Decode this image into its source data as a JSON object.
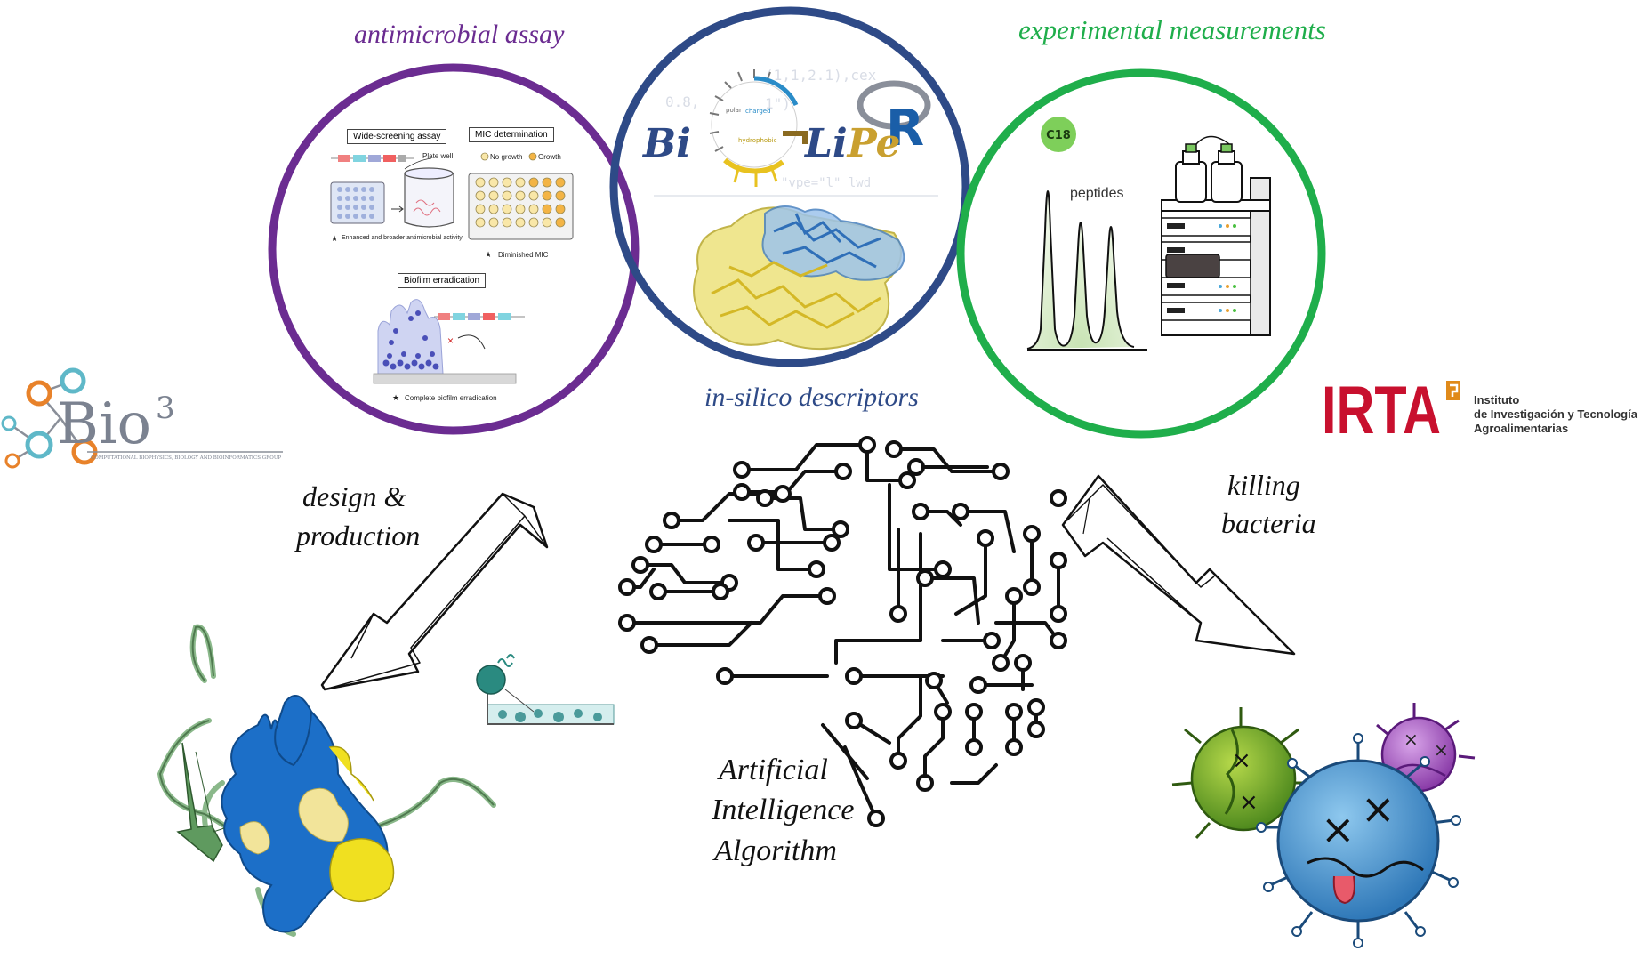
{
  "captions": {
    "antimicrobial": "antimicrobial assay",
    "experimental": "experimental measurements",
    "insilico": "in-silico descriptors",
    "design": [
      "design &",
      "production"
    ],
    "killing": [
      "killing",
      "bacteria"
    ],
    "ai": [
      "Artificial",
      "Intelligence",
      "Algorithm"
    ]
  },
  "assay": {
    "wide_screening": "Wide-screening assay",
    "plate_well": "Plate well",
    "enhanced": "Enhanced and broader antimicrobial activity",
    "mic": "MIC determination",
    "no_growth": "No growth",
    "growth": "Growth",
    "diminished": "Diminished MIC",
    "biofilm": "Biofilm erradication",
    "complete": "Complete biofilm erradication"
  },
  "biolipe": {
    "bi": "Bi",
    "lipe": "LiPe",
    "r": "R",
    "polar": "polar",
    "charged": "charged",
    "hydrophobic": "hydrophobic"
  },
  "hplc": {
    "c18": "C18",
    "peptides": "peptides"
  },
  "logos": {
    "bio3": "Bio",
    "bio3_sup": "3",
    "bio3_sub": "COMPUTATIONAL BIOPHYSICS, BIOLOGY AND BIOINFORMATICS GROUP",
    "irta": "IRTA",
    "irta_line1": "Instituto",
    "irta_line2": "de Investigación y Tecnología",
    "irta_line3": "Agroalimentarias"
  },
  "colors": {
    "purple": "#6b2c91",
    "navy": "#2e4a87",
    "green": "#1fae4b",
    "irta_red": "#c8102e",
    "bio3_orange": "#e8822a",
    "bio3_teal": "#5fb8c8"
  }
}
